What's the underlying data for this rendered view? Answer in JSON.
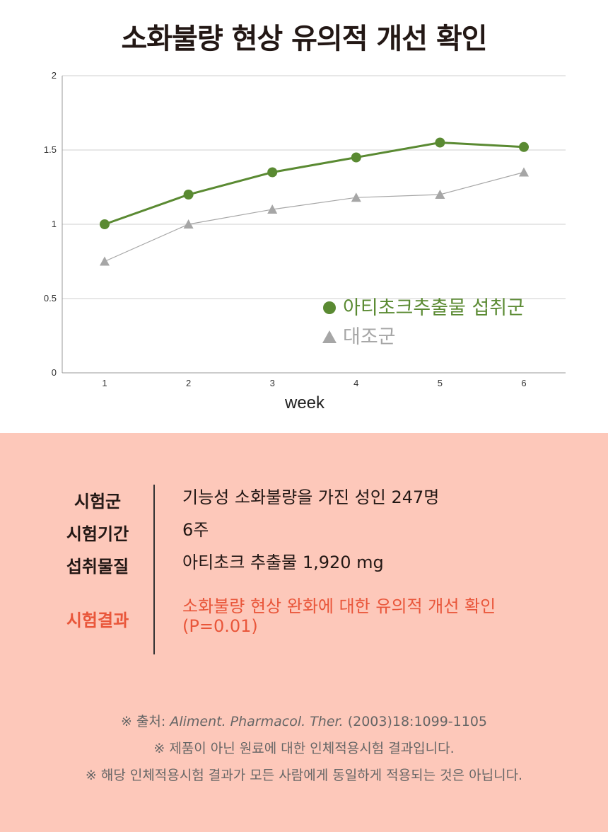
{
  "title": "소화불량 현상 유의적 개선 확인",
  "chart_data": {
    "type": "line",
    "x": [
      1,
      2,
      3,
      4,
      5,
      6
    ],
    "xlabel": "week",
    "ylabel": "",
    "ylim": [
      0,
      2
    ],
    "yticks": [
      "0",
      "0.5",
      "1",
      "1.5",
      "2"
    ],
    "xticks": [
      "1",
      "2",
      "3",
      "4",
      "5",
      "6"
    ],
    "grid": true,
    "legend_position": "bottom-right",
    "series": [
      {
        "name": "아티초크추출물 섭취군",
        "values": [
          1.0,
          1.2,
          1.35,
          1.45,
          1.55,
          1.52
        ],
        "color": "#5a8a32",
        "marker": "circle"
      },
      {
        "name": "대조군",
        "values": [
          0.75,
          1.0,
          1.1,
          1.18,
          1.2,
          1.35
        ],
        "color": "#a6a6a6",
        "marker": "triangle"
      }
    ]
  },
  "info": {
    "rows": [
      {
        "label": "시험군",
        "value": "기능성 소화불량을 가진 성인 247명"
      },
      {
        "label": "시험기간",
        "value": "6주"
      },
      {
        "label": "섭취물질",
        "value": "아티초크 추출물 1,920 mg"
      },
      {
        "label": "시험결과",
        "value": "소화불량 현상 완화에 대한 유의적 개선 확인",
        "value2": "(P=0.01)"
      }
    ],
    "accent_color": "#e9563a",
    "background_color": "#fdc8ba"
  },
  "notes": {
    "source_prefix": "※ 출처: ",
    "source_journal": "Aliment. Pharmacol. Ther.",
    "source_suffix": " (2003)18:1099-1105",
    "line2": "※ 제품이 아닌 원료에 대한 인체적용시험 결과입니다.",
    "line3": "※ 해당 인체적용시험 결과가 모든 사람에게 동일하게 적용되는 것은 아닙니다."
  }
}
